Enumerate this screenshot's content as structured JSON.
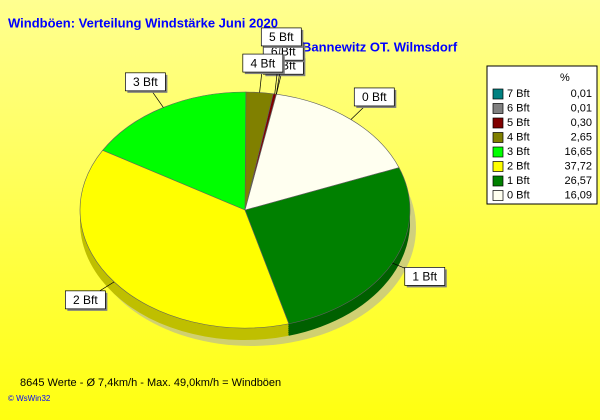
{
  "chart_data": {
    "type": "pie",
    "title": "Windböen: Verteilung Windstärke  Juni 2020",
    "subtitle": "Bannewitz OT. Wilmsdorf",
    "legend_title": "%",
    "categories": [
      "7 Bft",
      "6 Bft",
      "5 Bft",
      "4 Bft",
      "3 Bft",
      "2 Bft",
      "1 Bft",
      "0 Bft"
    ],
    "values": [
      0.01,
      0.01,
      0.3,
      2.65,
      16.65,
      37.72,
      26.57,
      16.09
    ],
    "value_labels": [
      "0,01",
      "0,01",
      "0,30",
      "2,65",
      "16,65",
      "37,72",
      "26,57",
      "16,09"
    ],
    "colors": [
      "#008080",
      "#808080",
      "#800000",
      "#808000",
      "#00ff00",
      "#ffff00",
      "#008000",
      "#fffff0"
    ],
    "footer": "8645 Werte   -   Ø 7,4km/h   -   Max. 49,0km/h = Windböen",
    "credit": "© WsWin32"
  }
}
